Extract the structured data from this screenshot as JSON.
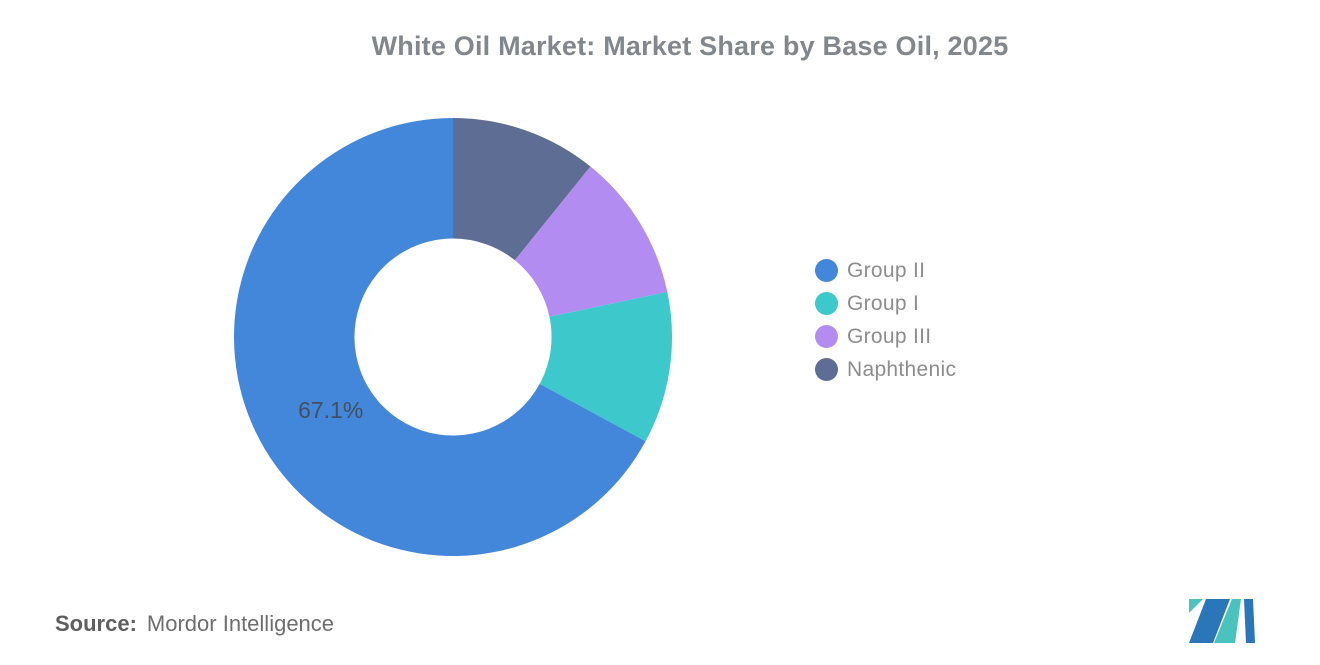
{
  "header": {
    "title": "White Oil Market: Market Share by Base Oil, 2025"
  },
  "chart_data": {
    "type": "pie",
    "donut": true,
    "title": "White Oil Market: Market Share by Base Oil, 2025",
    "inner_radius_ratio": 0.45,
    "direction": "counterclockwise-from-top",
    "legend_position": "right",
    "label_color": "#454e5c",
    "series": [
      {
        "name": "Group II",
        "value": 67.1,
        "color": "#4387DB",
        "label": "67.1%"
      },
      {
        "name": "Group I",
        "value": 11.2,
        "color": "#3DC8CB"
      },
      {
        "name": "Group III",
        "value": 10.9,
        "color": "#B38CF2"
      },
      {
        "name": "Naphthenic",
        "value": 10.8,
        "color": "#5D6D94"
      }
    ]
  },
  "footer": {
    "source_label": "Source:",
    "source_value": "Mordor Intelligence",
    "logo_icon": "mordor-intelligence-logo",
    "logo_colors": {
      "blue": "#2B76B9",
      "teal": "#4AC2BE"
    }
  }
}
